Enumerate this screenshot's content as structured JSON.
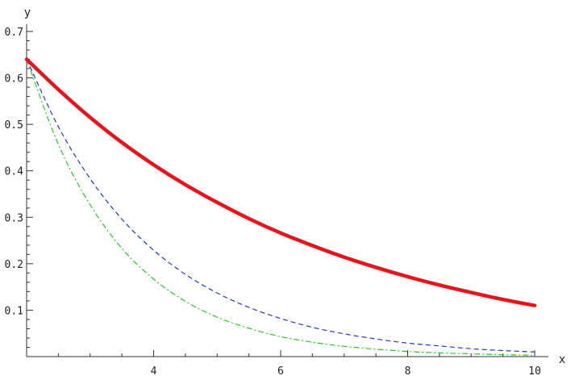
{
  "chart_data": {
    "type": "line",
    "xlabel": "x",
    "ylabel": "y",
    "xlim": [
      2,
      10
    ],
    "ylim": [
      0,
      0.7
    ],
    "x_ticks": [
      4,
      6,
      8,
      10
    ],
    "y_ticks": [
      0.1,
      0.2,
      0.3,
      0.4,
      0.5,
      0.6,
      0.7
    ],
    "x_tick_labels": [
      "4",
      "6",
      "8",
      "10"
    ],
    "y_tick_labels": [
      "0.1",
      "0.2",
      "0.3",
      "0.4",
      "0.5",
      "0.6",
      "0.7"
    ],
    "grid": false,
    "legend": "none",
    "x": [
      2,
      2.5,
      3,
      3.5,
      4,
      4.5,
      5,
      5.5,
      6,
      6.5,
      7,
      7.5,
      8,
      8.5,
      9,
      9.5,
      10
    ],
    "series": [
      {
        "color": "#e8141c",
        "style": "solid",
        "values": [
          0.64,
          0.575,
          0.515,
          0.461,
          0.413,
          0.37,
          0.332,
          0.297,
          0.266,
          0.239,
          0.214,
          0.192,
          0.172,
          0.154,
          0.138,
          0.123,
          0.11
        ]
      },
      {
        "color": "#2233cc",
        "style": "dashed",
        "values": [
          0.64,
          0.495,
          0.383,
          0.296,
          0.229,
          0.177,
          0.137,
          0.106,
          0.082,
          0.063,
          0.049,
          0.038,
          0.029,
          0.023,
          0.017,
          0.013,
          0.01
        ]
      },
      {
        "color": "#22cc22",
        "style": "dashdot",
        "values": [
          0.64,
          0.457,
          0.327,
          0.233,
          0.167,
          0.119,
          0.085,
          0.061,
          0.043,
          0.031,
          0.022,
          0.016,
          0.011,
          0.008,
          0.006,
          0.004,
          0.003
        ]
      }
    ]
  }
}
